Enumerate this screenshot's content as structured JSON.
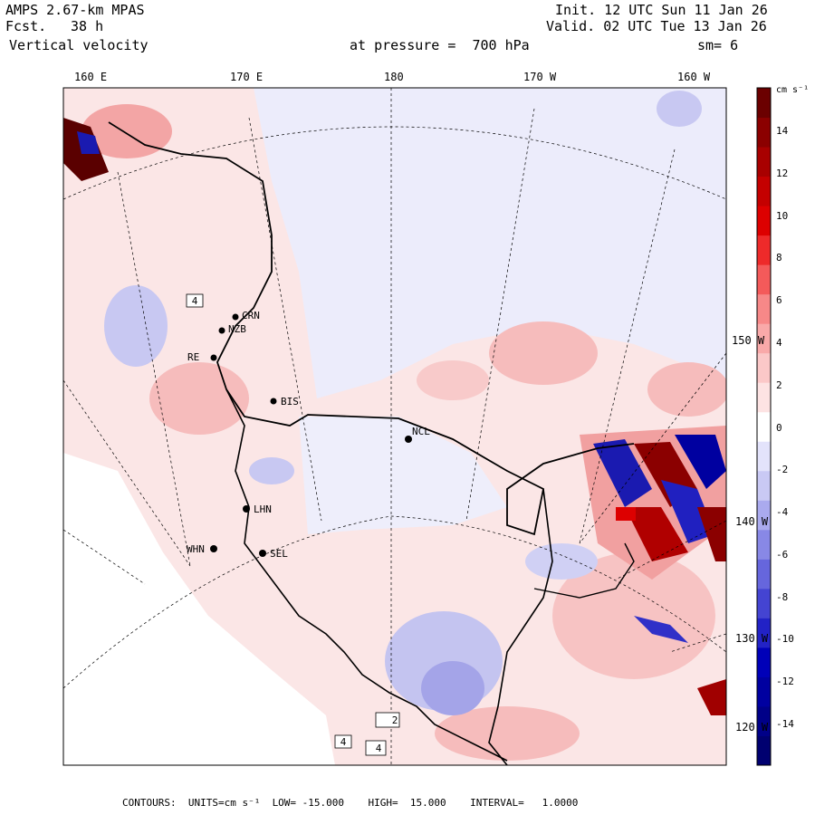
{
  "header": {
    "model": "AMPS 2.67-km MPAS",
    "forecast_label": "Fcst.",
    "forecast_value": "38 h",
    "field": "Vertical velocity",
    "init": "Init. 12 UTC Sun 11 Jan 26",
    "valid": "Valid. 02 UTC Tue 13 Jan 26",
    "pressure": "at pressure =  700 hPa",
    "smoothing": "sm= 6"
  },
  "top_axis": [
    "160 E",
    "170 E",
    "180",
    "170 W",
    "160 W"
  ],
  "right_axis": [
    "150 W",
    "140 W",
    "130 W",
    "120 W"
  ],
  "colorbar": {
    "units": "cm s⁻¹",
    "labels": [
      "14",
      "12",
      "10",
      "8",
      "6",
      "4",
      "2",
      "0",
      "-2",
      "-4",
      "-6",
      "-8",
      "-10",
      "-12",
      "-14"
    ],
    "colors": [
      "#6b0000",
      "#8b0000",
      "#a80000",
      "#c40000",
      "#dd0000",
      "#ee2a2a",
      "#f45a5a",
      "#f78888",
      "#f9a9a9",
      "#fbc8c8",
      "#fde3e3",
      "#ffffff",
      "#e3e3fb",
      "#c9c9f4",
      "#aaaaee",
      "#8888e6",
      "#6666dd",
      "#4444d2",
      "#2222c6",
      "#0000b8",
      "#0000a0",
      "#000088",
      "#000070"
    ]
  },
  "stations": [
    {
      "name": "CRN"
    },
    {
      "name": "NZB"
    },
    {
      "name": "RE"
    },
    {
      "name": "BIS"
    },
    {
      "name": "NCL"
    },
    {
      "name": "LHN"
    },
    {
      "name": "WHN"
    },
    {
      "name": "SEL"
    }
  ],
  "box_labels": [
    "4",
    "4",
    "2",
    "4"
  ],
  "footer": {
    "contours": "CONTOURS:  UNITS=cm s⁻¹  LOW= -15.000    HIGH=  15.000    INTERVAL=   1.0000"
  },
  "colors": {
    "positive": "#f6c4c4",
    "negative": "#c8c8f2",
    "frame": "#000000"
  }
}
